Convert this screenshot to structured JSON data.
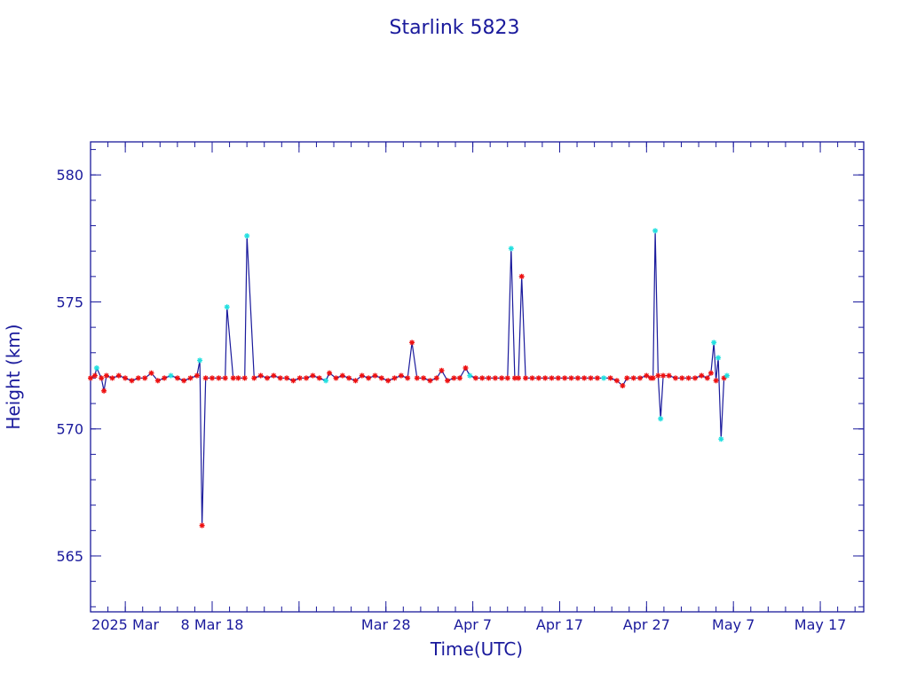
{
  "chart_data": {
    "type": "line",
    "title": "Starlink 5823",
    "xlabel": "Time(UTC)",
    "ylabel": "Height (km)",
    "x_start": "2025-02-22",
    "x_end": "2025-05-22",
    "ylim": [
      562.8,
      581.3
    ],
    "y_ticks": [
      565,
      570,
      575,
      580
    ],
    "x_ticks": [
      {
        "date": "2025-02-26",
        "label": "2025 Mar"
      },
      {
        "date": "2025-03-08",
        "label": "8 Mar 18"
      },
      {
        "date": "2025-03-18",
        "label": ""
      },
      {
        "date": "2025-03-28",
        "label": "Mar 28"
      },
      {
        "date": "2025-04-07",
        "label": "Apr  7"
      },
      {
        "date": "2025-04-17",
        "label": "Apr 17"
      },
      {
        "date": "2025-04-27",
        "label": "Apr 27"
      },
      {
        "date": "2025-05-07",
        "label": "May  7"
      },
      {
        "date": "2025-05-17",
        "label": "May 17"
      }
    ],
    "grid": false,
    "colors": {
      "axis": "#1a1a9c",
      "line": "#1a1a9c",
      "marker_red": "#ee1111",
      "marker_cyan": "#22e0e0"
    },
    "series": [
      {
        "points": [
          [
            "2025-02-22T00:00",
            572.0,
            "red"
          ],
          [
            "2025-02-22T12:00",
            572.1,
            "red"
          ],
          [
            "2025-02-22T17:00",
            572.4,
            "cyan"
          ],
          [
            "2025-02-23T06:00",
            572.0,
            "red"
          ],
          [
            "2025-02-23T13:00",
            571.5,
            "red"
          ],
          [
            "2025-02-23T20:00",
            572.1,
            "red"
          ],
          [
            "2025-02-24T12:00",
            572.0,
            "red"
          ],
          [
            "2025-02-25T06:00",
            572.1,
            "red"
          ],
          [
            "2025-02-26T00:00",
            572.0,
            "red"
          ],
          [
            "2025-02-26T18:00",
            571.9,
            "red"
          ],
          [
            "2025-02-27T12:00",
            572.0,
            "red"
          ],
          [
            "2025-02-28T06:00",
            572.0,
            "red"
          ],
          [
            "2025-03-01T00:00",
            572.2,
            "red"
          ],
          [
            "2025-03-01T18:00",
            571.9,
            "red"
          ],
          [
            "2025-03-02T12:00",
            572.0,
            "red"
          ],
          [
            "2025-03-03T06:00",
            572.1,
            "cyan"
          ],
          [
            "2025-03-04T00:00",
            572.0,
            "red"
          ],
          [
            "2025-03-04T18:00",
            571.9,
            "red"
          ],
          [
            "2025-03-05T12:00",
            572.0,
            "red"
          ],
          [
            "2025-03-06T06:00",
            572.1,
            "red"
          ],
          [
            "2025-03-06T14:00",
            572.7,
            "cyan"
          ],
          [
            "2025-03-06T20:00",
            566.2,
            "red"
          ],
          [
            "2025-03-07T06:00",
            572.0,
            "red"
          ],
          [
            "2025-03-08T00:00",
            572.0,
            "red"
          ],
          [
            "2025-03-08T18:00",
            572.0,
            "red"
          ],
          [
            "2025-03-09T12:00",
            572.0,
            "red"
          ],
          [
            "2025-03-09T17:00",
            574.8,
            "cyan"
          ],
          [
            "2025-03-10T10:00",
            572.0,
            "red"
          ],
          [
            "2025-03-11T00:00",
            572.0,
            "red"
          ],
          [
            "2025-03-11T18:00",
            572.0,
            "red"
          ],
          [
            "2025-03-12T00:00",
            577.6,
            "cyan"
          ],
          [
            "2025-03-12T20:00",
            572.0,
            "red"
          ],
          [
            "2025-03-13T14:00",
            572.1,
            "red"
          ],
          [
            "2025-03-14T08:00",
            572.0,
            "red"
          ],
          [
            "2025-03-15T02:00",
            572.1,
            "red"
          ],
          [
            "2025-03-15T20:00",
            572.0,
            "red"
          ],
          [
            "2025-03-16T14:00",
            572.0,
            "red"
          ],
          [
            "2025-03-17T08:00",
            571.9,
            "red"
          ],
          [
            "2025-03-18T02:00",
            572.0,
            "red"
          ],
          [
            "2025-03-18T20:00",
            572.0,
            "red"
          ],
          [
            "2025-03-19T14:00",
            572.1,
            "red"
          ],
          [
            "2025-03-20T08:00",
            572.0,
            "red"
          ],
          [
            "2025-03-21T02:00",
            571.9,
            "cyan"
          ],
          [
            "2025-03-21T12:00",
            572.2,
            "red"
          ],
          [
            "2025-03-22T06:00",
            572.0,
            "red"
          ],
          [
            "2025-03-23T00:00",
            572.1,
            "red"
          ],
          [
            "2025-03-23T18:00",
            572.0,
            "red"
          ],
          [
            "2025-03-24T12:00",
            571.9,
            "red"
          ],
          [
            "2025-03-25T06:00",
            572.1,
            "red"
          ],
          [
            "2025-03-26T00:00",
            572.0,
            "red"
          ],
          [
            "2025-03-26T18:00",
            572.1,
            "red"
          ],
          [
            "2025-03-27T12:00",
            572.0,
            "red"
          ],
          [
            "2025-03-28T06:00",
            571.9,
            "red"
          ],
          [
            "2025-03-29T00:00",
            572.0,
            "red"
          ],
          [
            "2025-03-29T18:00",
            572.1,
            "red"
          ],
          [
            "2025-03-30T12:00",
            572.0,
            "red"
          ],
          [
            "2025-03-31T00:00",
            573.4,
            "red"
          ],
          [
            "2025-03-31T14:00",
            572.0,
            "red"
          ],
          [
            "2025-04-01T08:00",
            572.0,
            "red"
          ],
          [
            "2025-04-02T02:00",
            571.9,
            "red"
          ],
          [
            "2025-04-02T20:00",
            572.0,
            "red"
          ],
          [
            "2025-04-03T10:00",
            572.3,
            "red"
          ],
          [
            "2025-04-04T02:00",
            571.9,
            "red"
          ],
          [
            "2025-04-04T20:00",
            572.0,
            "red"
          ],
          [
            "2025-04-05T12:00",
            572.0,
            "red"
          ],
          [
            "2025-04-06T04:00",
            572.4,
            "red"
          ],
          [
            "2025-04-06T16:00",
            572.1,
            "cyan"
          ],
          [
            "2025-04-07T08:00",
            572.0,
            "red"
          ],
          [
            "2025-04-08T02:00",
            572.0,
            "red"
          ],
          [
            "2025-04-08T20:00",
            572.0,
            "red"
          ],
          [
            "2025-04-09T14:00",
            572.0,
            "red"
          ],
          [
            "2025-04-10T08:00",
            572.0,
            "red"
          ],
          [
            "2025-04-11T00:00",
            572.0,
            "red"
          ],
          [
            "2025-04-11T10:00",
            577.1,
            "cyan"
          ],
          [
            "2025-04-11T20:00",
            572.0,
            "red"
          ],
          [
            "2025-04-12T06:00",
            572.0,
            "red"
          ],
          [
            "2025-04-12T15:00",
            576.0,
            "red"
          ],
          [
            "2025-04-13T02:00",
            572.0,
            "red"
          ],
          [
            "2025-04-13T20:00",
            572.0,
            "red"
          ],
          [
            "2025-04-14T14:00",
            572.0,
            "red"
          ],
          [
            "2025-04-15T08:00",
            572.0,
            "red"
          ],
          [
            "2025-04-16T02:00",
            572.0,
            "red"
          ],
          [
            "2025-04-16T20:00",
            572.0,
            "red"
          ],
          [
            "2025-04-17T14:00",
            572.0,
            "red"
          ],
          [
            "2025-04-18T08:00",
            572.0,
            "red"
          ],
          [
            "2025-04-19T02:00",
            572.0,
            "red"
          ],
          [
            "2025-04-19T20:00",
            572.0,
            "red"
          ],
          [
            "2025-04-20T14:00",
            572.0,
            "red"
          ],
          [
            "2025-04-21T08:00",
            572.0,
            "red"
          ],
          [
            "2025-04-22T02:00",
            572.0,
            "cyan"
          ],
          [
            "2025-04-22T20:00",
            572.0,
            "red"
          ],
          [
            "2025-04-23T14:00",
            571.9,
            "red"
          ],
          [
            "2025-04-24T06:00",
            571.7,
            "red"
          ],
          [
            "2025-04-24T18:00",
            572.0,
            "red"
          ],
          [
            "2025-04-25T12:00",
            572.0,
            "red"
          ],
          [
            "2025-04-26T06:00",
            572.0,
            "red"
          ],
          [
            "2025-04-27T00:00",
            572.1,
            "red"
          ],
          [
            "2025-04-27T12:00",
            572.0,
            "red"
          ],
          [
            "2025-04-27T18:00",
            572.0,
            "red"
          ],
          [
            "2025-04-28T00:00",
            577.8,
            "cyan"
          ],
          [
            "2025-04-28T08:00",
            572.1,
            "red"
          ],
          [
            "2025-04-28T15:00",
            570.4,
            "cyan"
          ],
          [
            "2025-04-28T22:00",
            572.1,
            "red"
          ],
          [
            "2025-04-29T14:00",
            572.1,
            "red"
          ],
          [
            "2025-04-30T08:00",
            572.0,
            "red"
          ],
          [
            "2025-05-01T02:00",
            572.0,
            "red"
          ],
          [
            "2025-05-01T20:00",
            572.0,
            "red"
          ],
          [
            "2025-05-02T14:00",
            572.0,
            "red"
          ],
          [
            "2025-05-03T08:00",
            572.1,
            "red"
          ],
          [
            "2025-05-04T00:00",
            572.0,
            "red"
          ],
          [
            "2025-05-04T10:00",
            572.2,
            "red"
          ],
          [
            "2025-05-04T18:00",
            573.4,
            "cyan"
          ],
          [
            "2025-05-05T00:00",
            571.9,
            "red"
          ],
          [
            "2025-05-05T06:00",
            572.8,
            "cyan"
          ],
          [
            "2025-05-05T14:00",
            569.6,
            "cyan"
          ],
          [
            "2025-05-05T22:00",
            572.0,
            "red"
          ],
          [
            "2025-05-06T06:00",
            572.1,
            "cyan"
          ]
        ]
      }
    ]
  }
}
